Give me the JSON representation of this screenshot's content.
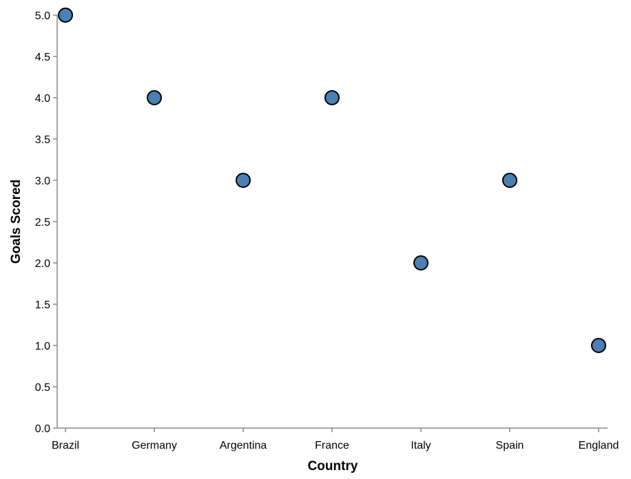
{
  "chart_data": {
    "type": "scatter",
    "xlabel": "Country",
    "ylabel": "Goals Scored",
    "categories": [
      "Brazil",
      "Germany",
      "Argentina",
      "France",
      "Italy",
      "Spain",
      "England"
    ],
    "values": [
      5,
      4,
      3,
      4,
      2,
      3,
      1
    ],
    "ylim": [
      0,
      5
    ],
    "yticks": [
      "0.0",
      "0.5",
      "1.0",
      "1.5",
      "2.0",
      "2.5",
      "3.0",
      "3.5",
      "4.0",
      "4.5",
      "5.0"
    ],
    "grid": false,
    "point_color": "#4c7fb4"
  }
}
